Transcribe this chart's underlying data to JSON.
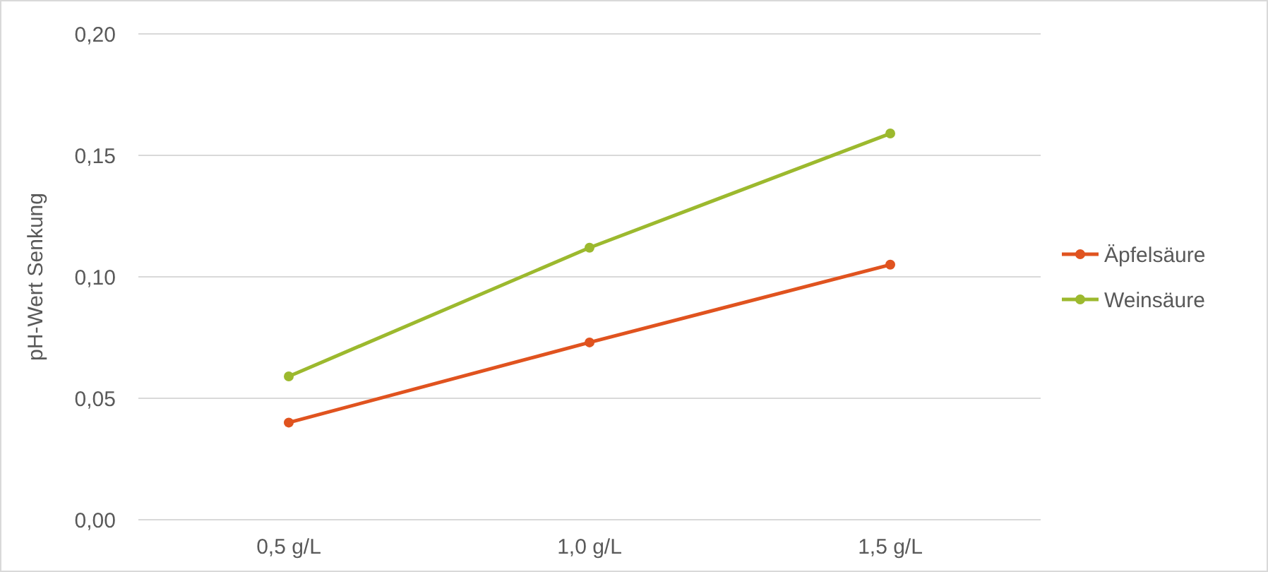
{
  "chart_data": {
    "type": "line",
    "ylabel": "pH-Wert Senkung",
    "categories": [
      "0,5 g/L",
      "1,0 g/L",
      "1,5 g/L"
    ],
    "series": [
      {
        "name": "Äpfelsäure",
        "color": "#e0531f",
        "values": [
          0.04,
          0.073,
          0.105
        ]
      },
      {
        "name": "Weinsäure",
        "color": "#9cb92e",
        "values": [
          0.059,
          0.112,
          0.159
        ]
      }
    ],
    "ylim": [
      0,
      0.2
    ],
    "yticks": [
      {
        "value": 0,
        "label": "0,00"
      },
      {
        "value": 0.05,
        "label": "0,05"
      },
      {
        "value": 0.1,
        "label": "0,10"
      },
      {
        "value": 0.15,
        "label": "0,15"
      },
      {
        "value": 0.2,
        "label": "0,20"
      }
    ],
    "grid": "y",
    "legend": "right",
    "marker": "circle",
    "line_style": "solid"
  }
}
